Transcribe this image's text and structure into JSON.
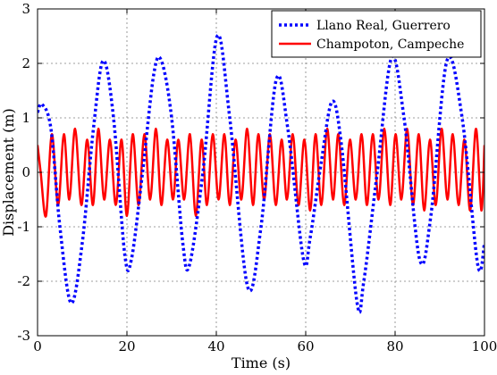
{
  "chart_data": {
    "type": "line",
    "title": "",
    "xlabel": "Time (s)",
    "ylabel": "Displacement (m)",
    "xlim": [
      0,
      100
    ],
    "ylim": [
      -3,
      3
    ],
    "xticks": [
      0,
      20,
      40,
      60,
      80,
      100
    ],
    "yticks": [
      -3,
      -2,
      -1,
      0,
      1,
      2,
      3
    ],
    "grid": true,
    "legend_position": "top-right",
    "series": [
      {
        "name": "Llano Real, Guerrero",
        "color": "#0000ff",
        "style": "dotted",
        "x": [
          0,
          1,
          3,
          5,
          7.5,
          10,
          12.5,
          14.7,
          17,
          19.5,
          21,
          23.5,
          26,
          27.7,
          30,
          32.5,
          34,
          37,
          40.2,
          43,
          47,
          50,
          53.4,
          56,
          59.5,
          61,
          63.5,
          65.9,
          68,
          71.5,
          73,
          76,
          79.2,
          82,
          85.5,
          88,
          91.6,
          95,
          98.5,
          100
        ],
        "y": [
          1.1,
          1.25,
          0.8,
          -1.0,
          -2.4,
          -1.3,
          0.8,
          2.05,
          1.0,
          -1.5,
          -1.6,
          0.0,
          1.8,
          2.05,
          1.0,
          -1.3,
          -1.7,
          0.0,
          2.5,
          1.0,
          -2.1,
          -1.0,
          1.7,
          0.8,
          -1.6,
          -1.2,
          0.2,
          1.3,
          0.5,
          -2.4,
          -2.0,
          0.0,
          2.1,
          1.0,
          -1.6,
          -0.8,
          2.05,
          1.0,
          -1.7,
          -1.3
        ]
      },
      {
        "name": "Champoton, Campeche",
        "color": "#ff0000",
        "style": "solid",
        "x": [
          0,
          0.7,
          1.9,
          3.2,
          4.6,
          5.9,
          7.1,
          8.4,
          9.8,
          11.1,
          12.4,
          13.6,
          14.9,
          16.2,
          17.5,
          18.8,
          20.0,
          21.3,
          22.6,
          23.9,
          25.2,
          26.5,
          27.7,
          29.0,
          30.3,
          31.5,
          32.8,
          34.1,
          35.4,
          36.7,
          37.9,
          39.2,
          40.5,
          41.8,
          43.0,
          44.3,
          45.6,
          46.9,
          48.2,
          49.4,
          50.7,
          52.0,
          53.3,
          54.6,
          55.8,
          57.1,
          58.4,
          59.7,
          61.0,
          62.2,
          63.5,
          64.8,
          66.1,
          67.3,
          68.6,
          69.9,
          71.2,
          72.5,
          73.7,
          75.0,
          76.3,
          77.6,
          78.9,
          80.1,
          81.4,
          82.7,
          84.0,
          85.3,
          86.5,
          87.8,
          89.1,
          90.4,
          91.7,
          92.9,
          94.2,
          95.5,
          96.8,
          98.1,
          99.3,
          100
        ],
        "y": [
          0.5,
          0.0,
          -0.8,
          0.7,
          -0.6,
          0.7,
          -0.5,
          0.8,
          -0.6,
          0.6,
          -0.6,
          0.8,
          -0.5,
          0.6,
          -0.6,
          0.6,
          -0.8,
          0.7,
          -0.6,
          0.7,
          -0.5,
          0.8,
          -0.6,
          0.6,
          -0.5,
          0.6,
          -0.5,
          0.7,
          -0.8,
          0.6,
          -0.6,
          0.7,
          -0.5,
          0.7,
          -0.6,
          0.6,
          -0.5,
          0.8,
          -0.6,
          0.7,
          -0.5,
          0.7,
          -0.6,
          0.6,
          -0.5,
          0.7,
          -0.6,
          0.6,
          -0.7,
          0.7,
          -0.6,
          0.8,
          -0.5,
          0.7,
          -0.6,
          0.6,
          -0.5,
          0.7,
          -0.6,
          0.7,
          -0.5,
          0.8,
          -0.6,
          0.7,
          -0.5,
          0.8,
          -0.6,
          0.7,
          -0.7,
          0.6,
          -0.6,
          0.8,
          -0.5,
          0.7,
          -0.6,
          0.6,
          -0.7,
          0.8,
          -0.7,
          0.5
        ]
      }
    ]
  }
}
